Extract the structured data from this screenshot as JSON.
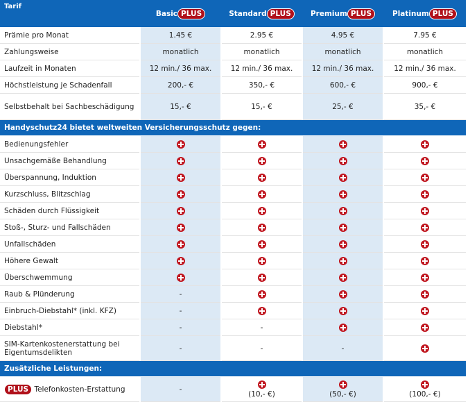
{
  "header": {
    "label": "Tarif",
    "plans": [
      {
        "name": "Basic",
        "badge": "PLUS"
      },
      {
        "name": "Standard",
        "badge": "PLUS"
      },
      {
        "name": "Premium",
        "badge": "PLUS"
      },
      {
        "name": "Platinum",
        "badge": "PLUS"
      }
    ]
  },
  "rows": [
    {
      "label": "Prämie pro Monat",
      "cells": [
        "1.45 €",
        "2.95 €",
        "4.95 €",
        "7.95 €"
      ]
    },
    {
      "label": "Zahlungsweise",
      "cells": [
        "monatlich",
        "monatlich",
        "monatlich",
        "monatlich"
      ]
    },
    {
      "label": "Laufzeit in Monaten",
      "cells": [
        "12 min./ 36 max.",
        "12 min./ 36 max.",
        "12 min./ 36 max.",
        "12 min./ 36 max."
      ]
    },
    {
      "label": "Höchstleistung je Schadenfall",
      "cells": [
        "200,- €",
        "350,- €",
        "600,- €",
        "900,- €"
      ]
    },
    {
      "label": "Selbstbehalt bei Sachbeschädigung",
      "cells": [
        "15,- €",
        "15,- €",
        "25,- €",
        "35,- €"
      ]
    }
  ],
  "sections": [
    {
      "title": "Handyschutz24 bietet weltweiten Versicherungsschutz gegen:",
      "rows": [
        {
          "label": "Bedienungsfehler",
          "cells": [
            true,
            true,
            true,
            true
          ]
        },
        {
          "label": "Unsachgemäße Behandlung",
          "cells": [
            true,
            true,
            true,
            true
          ]
        },
        {
          "label": "Überspannung, Induktion",
          "cells": [
            true,
            true,
            true,
            true
          ]
        },
        {
          "label": "Kurzschluss, Blitzschlag",
          "cells": [
            true,
            true,
            true,
            true
          ]
        },
        {
          "label": "Schäden durch Flüssigkeit",
          "cells": [
            true,
            true,
            true,
            true
          ]
        },
        {
          "label": "Stoß-, Sturz- und Fallschäden",
          "cells": [
            true,
            true,
            true,
            true
          ]
        },
        {
          "label": "Unfallschäden",
          "cells": [
            true,
            true,
            true,
            true
          ]
        },
        {
          "label": "Höhere Gewalt",
          "cells": [
            true,
            true,
            true,
            true
          ]
        },
        {
          "label": "Überschwemmung",
          "cells": [
            true,
            true,
            true,
            true
          ]
        },
        {
          "label": "Raub & Plünderung",
          "cells": [
            "-",
            true,
            true,
            true
          ]
        },
        {
          "label": "Einbruch-Diebstahl* (inkl. KFZ)",
          "cells": [
            "-",
            true,
            true,
            true
          ]
        },
        {
          "label": "Diebstahl*",
          "cells": [
            "-",
            "-",
            true,
            true
          ]
        },
        {
          "label": "SIM-Kartenkostenerstattung bei Eigentumsdelikten",
          "cells": [
            "-",
            "-",
            "-",
            true
          ]
        }
      ]
    },
    {
      "title": "Zusätzliche Leistungen:",
      "rows": [
        {
          "badge": "PLUS",
          "label": "Telefonkosten-Erstattung",
          "cells": [
            "-",
            {
              "icon": true,
              "note": "(10,- €)"
            },
            {
              "icon": true,
              "note": "(50,- €)"
            },
            {
              "icon": true,
              "note": "(100,- €)"
            }
          ]
        }
      ]
    }
  ]
}
